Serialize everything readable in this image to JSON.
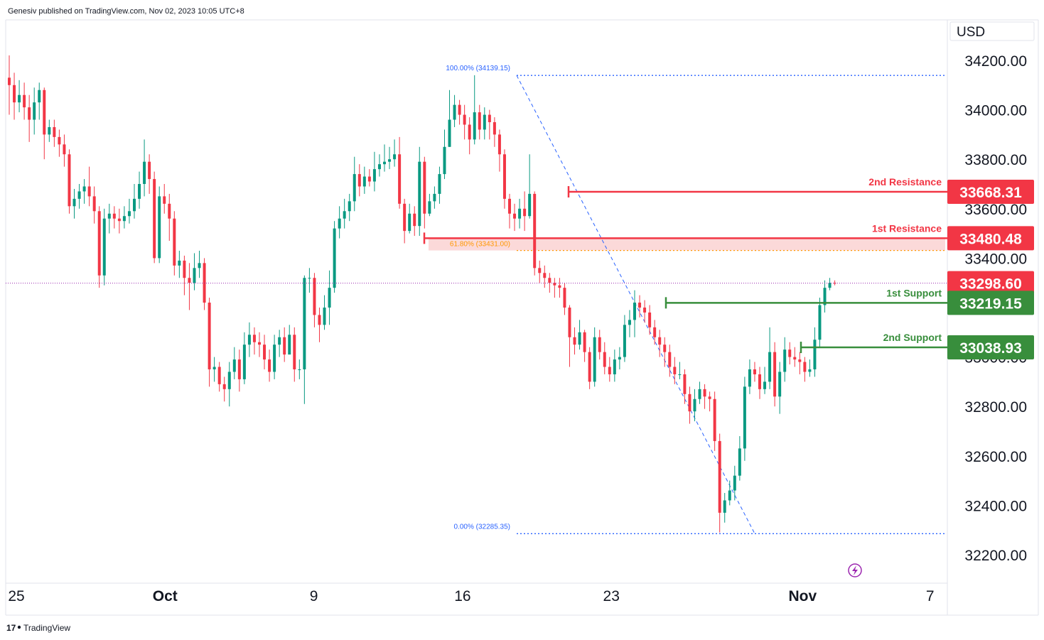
{
  "header": {
    "published_by": "Genesiv published on TradingView.com, Nov 02, 2023 10:05 UTC+8"
  },
  "footer": {
    "brand": "TradingView",
    "brand_logo_text": "17"
  },
  "currency_label": "USD",
  "colors": {
    "bullish": "#089981",
    "bearish": "#f23645",
    "resistance": "#f23645",
    "support": "#388e3c",
    "fib_line": "#2962ff",
    "fib_golden": "#ff9800",
    "current_price_line": "#9c27b0",
    "fib_zone_fill": "#f9cccc"
  },
  "chart_data": {
    "type": "candlestick",
    "symbol_quote": "USD",
    "y_axis": {
      "ticks": [
        "34200.00",
        "34000.00",
        "33800.00",
        "33600.00",
        "33400.00",
        "32800.00",
        "32600.00",
        "32400.00",
        "32200.00"
      ],
      "ylim": [
        32150,
        34380
      ]
    },
    "x_axis": {
      "ticks": [
        {
          "label": "25",
          "date": "2023-09-25"
        },
        {
          "label": "Oct",
          "date": "2023-10-02"
        },
        {
          "label": "9",
          "date": "2023-10-09"
        },
        {
          "label": "16",
          "date": "2023-10-16"
        },
        {
          "label": "23",
          "date": "2023-10-23"
        },
        {
          "label": "Nov",
          "date": "2023-11-01"
        },
        {
          "label": "7",
          "date": "2023-11-07"
        }
      ]
    },
    "current_price": {
      "value": "33298.60",
      "num": 33298.6
    },
    "levels": [
      {
        "label": "2nd Resistance",
        "value": "33668.31",
        "num": 33668.31,
        "kind": "resistance"
      },
      {
        "label": "1st Resistance",
        "value": "33480.48",
        "num": 33480.48,
        "kind": "resistance"
      },
      {
        "label": "1st Support",
        "value": "33219.15",
        "num": 33219.15,
        "kind": "support"
      },
      {
        "label": "2nd Support",
        "value": "33038.93",
        "num": 33038.93,
        "kind": "support"
      }
    ],
    "fibonacci": [
      {
        "label": "100.00% (34139.15)",
        "num": 34139.15
      },
      {
        "label": "61.80% (33431.00)",
        "num": 33431.0
      },
      {
        "label": "0.00% (32285.35)",
        "num": 32285.35
      }
    ],
    "candles": [
      [
        34130,
        34100,
        34220,
        33980
      ],
      [
        34100,
        34030,
        34150,
        33960
      ],
      [
        34030,
        34060,
        34120,
        33990
      ],
      [
        34060,
        34010,
        34110,
        33960
      ],
      [
        34010,
        33960,
        34060,
        33870
      ],
      [
        33960,
        34030,
        34090,
        33900
      ],
      [
        34030,
        34080,
        34110,
        33960
      ],
      [
        34080,
        33900,
        34090,
        33800
      ],
      [
        33900,
        33930,
        33960,
        33870
      ],
      [
        33930,
        33890,
        33960,
        33850
      ],
      [
        33890,
        33860,
        33920,
        33810
      ],
      [
        33860,
        33820,
        33900,
        33770
      ],
      [
        33820,
        33610,
        33840,
        33580
      ],
      [
        33610,
        33640,
        33680,
        33560
      ],
      [
        33640,
        33670,
        33700,
        33600
      ],
      [
        33670,
        33690,
        33720,
        33620
      ],
      [
        33690,
        33650,
        33770,
        33610
      ],
      [
        33650,
        33590,
        33690,
        33540
      ],
      [
        33590,
        33330,
        33610,
        33280
      ],
      [
        33330,
        33560,
        33600,
        33290
      ],
      [
        33560,
        33580,
        33620,
        33500
      ],
      [
        33580,
        33560,
        33610,
        33520
      ],
      [
        33560,
        33550,
        33600,
        33500
      ],
      [
        33550,
        33570,
        33610,
        33520
      ],
      [
        33570,
        33590,
        33640,
        33540
      ],
      [
        33590,
        33640,
        33700,
        33560
      ],
      [
        33640,
        33700,
        33750,
        33600
      ],
      [
        33700,
        33790,
        33880,
        33650
      ],
      [
        33790,
        33720,
        33820,
        33660
      ],
      [
        33720,
        33400,
        33750,
        33380
      ],
      [
        33400,
        33650,
        33690,
        33380
      ],
      [
        33650,
        33620,
        33700,
        33580
      ],
      [
        33620,
        33560,
        33660,
        33470
      ],
      [
        33560,
        33370,
        33590,
        33330
      ],
      [
        33370,
        33390,
        33430,
        33320
      ],
      [
        33390,
        33320,
        33410,
        33250
      ],
      [
        33320,
        33300,
        33380,
        33190
      ],
      [
        33300,
        33360,
        33420,
        33270
      ],
      [
        33360,
        33380,
        33430,
        33320
      ],
      [
        33380,
        33220,
        33400,
        33190
      ],
      [
        33220,
        32950,
        33240,
        32880
      ],
      [
        32950,
        32960,
        33000,
        32900
      ],
      [
        32960,
        32890,
        32980,
        32860
      ],
      [
        32890,
        32870,
        32920,
        32820
      ],
      [
        32870,
        32940,
        32980,
        32800
      ],
      [
        32940,
        32990,
        33040,
        32910
      ],
      [
        32990,
        32910,
        33030,
        32860
      ],
      [
        32910,
        33050,
        33100,
        32890
      ],
      [
        33050,
        33090,
        33140,
        33000
      ],
      [
        33090,
        33060,
        33120,
        33010
      ],
      [
        33060,
        33050,
        33100,
        33000
      ],
      [
        33050,
        32990,
        33090,
        32950
      ],
      [
        32990,
        32940,
        33030,
        32900
      ],
      [
        32940,
        33050,
        33090,
        32910
      ],
      [
        33050,
        33080,
        33110,
        33000
      ],
      [
        33080,
        33010,
        33120,
        32980
      ],
      [
        33010,
        33090,
        33130,
        33030
      ],
      [
        33090,
        32950,
        33120,
        32900
      ],
      [
        32950,
        32950,
        32990,
        32910
      ],
      [
        32950,
        33320,
        33330,
        32810
      ],
      [
        33320,
        33320,
        33360,
        33260
      ],
      [
        33320,
        33170,
        33340,
        33120
      ],
      [
        33170,
        33130,
        33200,
        33060
      ],
      [
        33130,
        33200,
        33250,
        33110
      ],
      [
        33200,
        33280,
        33350,
        33130
      ],
      [
        33280,
        33520,
        33550,
        33260
      ],
      [
        33520,
        33560,
        33610,
        33480
      ],
      [
        33560,
        33590,
        33640,
        33520
      ],
      [
        33590,
        33630,
        33660,
        33550
      ],
      [
        33630,
        33740,
        33810,
        33590
      ],
      [
        33740,
        33690,
        33780,
        33650
      ],
      [
        33690,
        33730,
        33770,
        33660
      ],
      [
        33730,
        33710,
        33760,
        33690
      ],
      [
        33710,
        33760,
        33830,
        33670
      ],
      [
        33760,
        33780,
        33820,
        33730
      ],
      [
        33780,
        33790,
        33860,
        33750
      ],
      [
        33790,
        33800,
        33850,
        33760
      ],
      [
        33800,
        33820,
        33880,
        33770
      ],
      [
        33820,
        33620,
        33890,
        33600
      ],
      [
        33620,
        33510,
        33640,
        33460
      ],
      [
        33510,
        33580,
        33620,
        33500
      ],
      [
        33580,
        33530,
        33610,
        33490
      ],
      [
        33530,
        33790,
        33850,
        33490
      ],
      [
        33790,
        33580,
        33810,
        33520
      ],
      [
        33580,
        33630,
        33660,
        33570
      ],
      [
        33630,
        33660,
        33690,
        33600
      ],
      [
        33660,
        33740,
        33770,
        33620
      ],
      [
        33740,
        33850,
        33920,
        33720
      ],
      [
        33850,
        33960,
        34080,
        33850
      ],
      [
        33960,
        34020,
        34060,
        33930
      ],
      [
        34020,
        33980,
        34040,
        33940
      ],
      [
        33980,
        33940,
        34020,
        33880
      ],
      [
        33940,
        33880,
        33970,
        33820
      ],
      [
        33880,
        33990,
        34140,
        33860
      ],
      [
        33990,
        33920,
        34020,
        33880
      ],
      [
        33920,
        33980,
        34010,
        33880
      ],
      [
        33980,
        33950,
        34000,
        33880
      ],
      [
        33950,
        33900,
        33970,
        33850
      ],
      [
        33900,
        33820,
        33920,
        33750
      ],
      [
        33820,
        33640,
        33840,
        33600
      ],
      [
        33640,
        33580,
        33660,
        33520
      ],
      [
        33580,
        33560,
        33620,
        33510
      ],
      [
        33560,
        33600,
        33640,
        33520
      ],
      [
        33600,
        33570,
        33670,
        33510
      ],
      [
        33570,
        33660,
        33820,
        33560
      ],
      [
        33660,
        33360,
        33670,
        33330
      ],
      [
        33360,
        33340,
        33390,
        33300
      ],
      [
        33340,
        33320,
        33370,
        33280
      ],
      [
        33320,
        33300,
        33340,
        33260
      ],
      [
        33300,
        33290,
        33320,
        33240
      ],
      [
        33290,
        33280,
        33320,
        33240
      ],
      [
        33280,
        33200,
        33300,
        33170
      ],
      [
        33200,
        33080,
        33210,
        32960
      ],
      [
        33080,
        33050,
        33120,
        33010
      ],
      [
        33050,
        33100,
        33150,
        33030
      ],
      [
        33100,
        33020,
        33110,
        32980
      ],
      [
        33020,
        32900,
        33040,
        32870
      ],
      [
        32900,
        33080,
        33120,
        32880
      ],
      [
        33080,
        33020,
        33110,
        32990
      ],
      [
        33020,
        32960,
        33060,
        32930
      ],
      [
        32960,
        32930,
        33000,
        32900
      ],
      [
        32930,
        32990,
        33030,
        32900
      ],
      [
        32990,
        33000,
        33040,
        32950
      ],
      [
        33000,
        33130,
        33170,
        32980
      ],
      [
        33130,
        33150,
        33190,
        33080
      ],
      [
        33150,
        33220,
        33270,
        33080
      ],
      [
        33220,
        33200,
        33250,
        33160
      ],
      [
        33200,
        33180,
        33230,
        33140
      ],
      [
        33180,
        33120,
        33210,
        33090
      ],
      [
        33120,
        33080,
        33150,
        33050
      ],
      [
        33080,
        33050,
        33110,
        33000
      ],
      [
        33050,
        33020,
        33080,
        32960
      ],
      [
        33020,
        32960,
        33050,
        32920
      ],
      [
        32960,
        32930,
        33000,
        32890
      ],
      [
        32930,
        32930,
        32980,
        32910
      ],
      [
        32930,
        32850,
        32950,
        32810
      ],
      [
        32850,
        32780,
        32880,
        32730
      ],
      [
        32780,
        32830,
        32870,
        32740
      ],
      [
        32830,
        32870,
        32900,
        32810
      ],
      [
        32870,
        32840,
        32890,
        32790
      ],
      [
        32840,
        32830,
        32860,
        32780
      ],
      [
        32830,
        32660,
        32860,
        32620
      ],
      [
        32660,
        32370,
        32690,
        32290
      ],
      [
        32370,
        32420,
        32450,
        32330
      ],
      [
        32420,
        32460,
        32500,
        32400
      ],
      [
        32460,
        32520,
        32560,
        32420
      ],
      [
        32520,
        32630,
        32680,
        32500
      ],
      [
        32630,
        32880,
        32920,
        32580
      ],
      [
        32880,
        32950,
        32990,
        32850
      ],
      [
        32950,
        32930,
        32980,
        32900
      ],
      [
        32930,
        32870,
        32960,
        32830
      ],
      [
        32870,
        32900,
        32960,
        32850
      ],
      [
        32900,
        33020,
        33120,
        32870
      ],
      [
        33020,
        32840,
        33060,
        32800
      ],
      [
        32840,
        32940,
        32980,
        32770
      ],
      [
        32940,
        33030,
        33080,
        32900
      ],
      [
        33030,
        33000,
        33060,
        32970
      ],
      [
        33000,
        32990,
        33040,
        32960
      ],
      [
        32990,
        32980,
        33020,
        32930
      ],
      [
        32980,
        32940,
        33000,
        32900
      ],
      [
        32940,
        32950,
        32990,
        32920
      ],
      [
        32950,
        33070,
        33120,
        32920
      ],
      [
        33070,
        33210,
        33240,
        33040
      ],
      [
        33210,
        33280,
        33310,
        33180
      ],
      [
        33280,
        33300,
        33320,
        33270
      ],
      [
        33300,
        33298.6,
        33310,
        33290
      ]
    ]
  }
}
